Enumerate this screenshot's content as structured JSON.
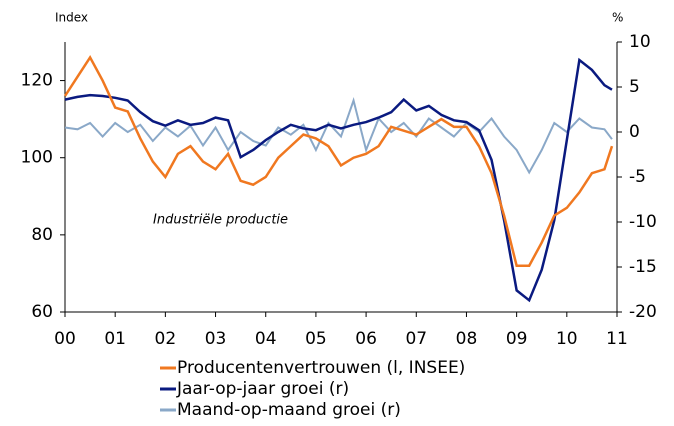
{
  "chart_data": {
    "type": "line",
    "y_label": "Index",
    "y2_label": "%",
    "annotation": "Industriële productie",
    "x": [
      0,
      0.25,
      0.5,
      0.75,
      1,
      1.25,
      1.5,
      1.75,
      2,
      2.25,
      2.5,
      2.75,
      3,
      3.25,
      3.5,
      3.75,
      4,
      4.25,
      4.5,
      4.75,
      5,
      5.25,
      5.5,
      5.75,
      6,
      6.25,
      6.5,
      6.75,
      7,
      7.25,
      7.5,
      7.75,
      8,
      8.25,
      8.5,
      8.75,
      9,
      9.25,
      9.5,
      9.75,
      10,
      10.25,
      10.5,
      10.75,
      10.9
    ],
    "xlim": [
      0,
      11
    ],
    "xticks": [
      {
        "value": 0,
        "label": "00"
      },
      {
        "value": 1,
        "label": "01"
      },
      {
        "value": 2,
        "label": "02"
      },
      {
        "value": 3,
        "label": "03"
      },
      {
        "value": 4,
        "label": "04"
      },
      {
        "value": 5,
        "label": "05"
      },
      {
        "value": 6,
        "label": "06"
      },
      {
        "value": 7,
        "label": "07"
      },
      {
        "value": 8,
        "label": "08"
      },
      {
        "value": 9,
        "label": "09"
      },
      {
        "value": 10,
        "label": "10"
      },
      {
        "value": 11,
        "label": "11"
      }
    ],
    "ylim": [
      60,
      130
    ],
    "yticks": [
      60,
      80,
      100,
      120
    ],
    "y2lim": [
      -20,
      10
    ],
    "y2ticks": [
      -20,
      -15,
      -10,
      -5,
      0,
      5,
      10
    ],
    "series": [
      {
        "name": "Producentenvertrouwen (l, INSEE)",
        "color": "#f07820",
        "axis": "y",
        "values": [
          116,
          121,
          126,
          120,
          113,
          112,
          105,
          99,
          95,
          101,
          103,
          99,
          97,
          101,
          94,
          93,
          95,
          100,
          103,
          106,
          105,
          103,
          98,
          100,
          101,
          103,
          108,
          107,
          106,
          108,
          110,
          108,
          108,
          103,
          96,
          85,
          72,
          72,
          78,
          85,
          87,
          91,
          96,
          97,
          103
        ]
      },
      {
        "name": "Jaar-op-jaar groei (r)",
        "color": "#0a1a80",
        "axis": "y2",
        "values": [
          3.6,
          3.9,
          4.1,
          4.0,
          3.8,
          3.5,
          2.2,
          1.2,
          0.7,
          1.3,
          0.8,
          1.0,
          1.6,
          1.3,
          -2.8,
          -2.0,
          -0.9,
          0,
          0.8,
          0.4,
          0.2,
          0.8,
          0.4,
          0.8,
          1.1,
          1.6,
          2.2,
          3.6,
          2.4,
          2.9,
          1.9,
          1.3,
          1.1,
          0.2,
          -3.1,
          -9.8,
          -17.6,
          -18.7,
          -15.3,
          -9.8,
          -0.9,
          8,
          6.9,
          5.2,
          4.7
        ]
      },
      {
        "name": "Maand-op-maand groei (r)",
        "color": "#8aa8c8",
        "axis": "y2",
        "values": [
          0.5,
          0.3,
          1,
          -0.5,
          1,
          0,
          0.8,
          -1,
          0.5,
          -0.5,
          0.7,
          -1.5,
          0.5,
          -2,
          0,
          -1,
          -1.5,
          0.5,
          -0.3,
          0.8,
          -2,
          1,
          -0.5,
          3.5,
          -2,
          1.5,
          0,
          1,
          -0.5,
          1.5,
          0.5,
          -0.5,
          1,
          0,
          1.5,
          -0.5,
          -2,
          -4.5,
          -2,
          1,
          0,
          1.5,
          0.5,
          0.3,
          -0.8
        ]
      }
    ]
  }
}
